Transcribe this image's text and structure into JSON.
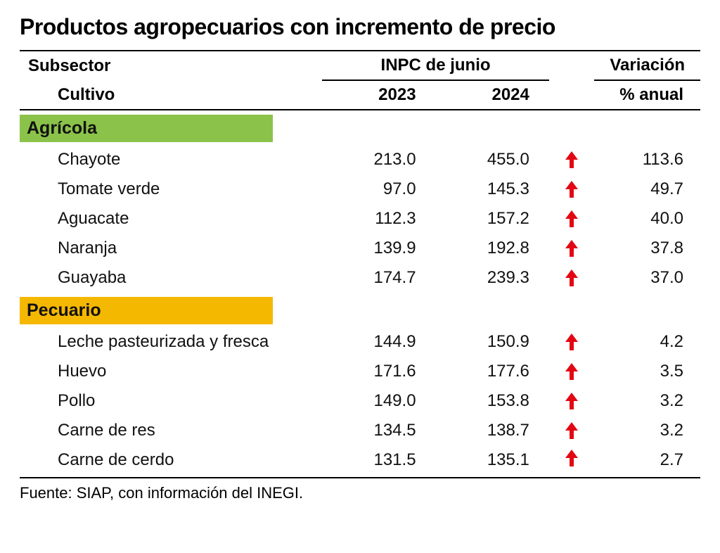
{
  "title": "Productos agropecuarios con incremento de precio",
  "headers": {
    "subsector": "Subsector",
    "inpc": "INPC de junio",
    "variacion": "Variación",
    "cultivo": "Cultivo",
    "y2023": "2023",
    "y2024": "2024",
    "pct_anual": "% anual"
  },
  "sections": [
    {
      "label": "Agrícola",
      "color": "#8bc34a",
      "rows": [
        {
          "name": "Chayote",
          "v2023": "213.0",
          "v2024": "455.0",
          "variation": "113.6"
        },
        {
          "name": "Tomate verde",
          "v2023": "97.0",
          "v2024": "145.3",
          "variation": "49.7"
        },
        {
          "name": "Aguacate",
          "v2023": "112.3",
          "v2024": "157.2",
          "variation": "40.0"
        },
        {
          "name": "Naranja",
          "v2023": "139.9",
          "v2024": "192.8",
          "variation": "37.8"
        },
        {
          "name": "Guayaba",
          "v2023": "174.7",
          "v2024": "239.3",
          "variation": "37.0"
        }
      ]
    },
    {
      "label": "Pecuario",
      "color": "#f5b800",
      "rows": [
        {
          "name": "Leche pasteurizada y fresca",
          "v2023": "144.9",
          "v2024": "150.9",
          "variation": "4.2"
        },
        {
          "name": "Huevo",
          "v2023": "171.6",
          "v2024": "177.6",
          "variation": "3.5"
        },
        {
          "name": "Pollo",
          "v2023": "149.0",
          "v2024": "153.8",
          "variation": "3.2"
        },
        {
          "name": "Carne de res",
          "v2023": "134.5",
          "v2024": "138.7",
          "variation": "3.2"
        },
        {
          "name": "Carne de cerdo",
          "v2023": "131.5",
          "v2024": "135.1",
          "variation": "2.7"
        }
      ]
    }
  ],
  "arrow_color": "#e30613",
  "source": "Fuente: SIAP, con información del INEGI.",
  "styling": {
    "title_fontsize": 32,
    "body_fontsize": 24,
    "header_fontweight": 700,
    "section_agricola_bg": "#8bc34a",
    "section_pecuario_bg": "#f5b800",
    "border_color": "#000000",
    "background_color": "#ffffff",
    "text_color": "#000000"
  }
}
